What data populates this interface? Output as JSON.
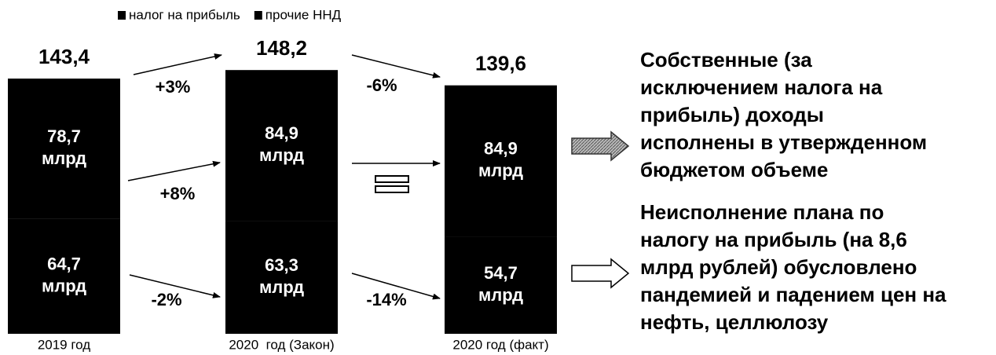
{
  "chart_data": {
    "type": "stacked_bar",
    "categories": [
      "2019 год",
      "2020  год (Закон)",
      "2020 год (факт)"
    ],
    "series": [
      {
        "name": "налог на прибыль",
        "color": "#000000",
        "values": [
          64.7,
          63.3,
          54.7
        ],
        "value_labels": [
          "64,7",
          "63,3",
          "54,7"
        ]
      },
      {
        "name": "прочие ННД",
        "color": "#000000",
        "values": [
          78.7,
          84.9,
          84.9
        ],
        "value_labels": [
          "78,7",
          "84,9",
          "84,9"
        ]
      }
    ],
    "unit": "млрд",
    "totals": [
      143.4,
      148.2,
      139.6
    ],
    "totals_labels": [
      "143,4",
      "148,2",
      "139,6"
    ],
    "annotations": [
      "+3%",
      "-6%",
      "+8%",
      "-2%",
      "-14%"
    ],
    "notes": [
      [
        "Собственные (за",
        "исключением налога на",
        "прибыль) доходы",
        "исполнены в утвержденном",
        "бюджетом объеме"
      ],
      [
        "Неисполнение плана по",
        "налогу на прибыль (на 8,6",
        "млрд рублей) обусловлено",
        "пандемией и падением цен на",
        "нефть, целлюлозу"
      ]
    ]
  }
}
